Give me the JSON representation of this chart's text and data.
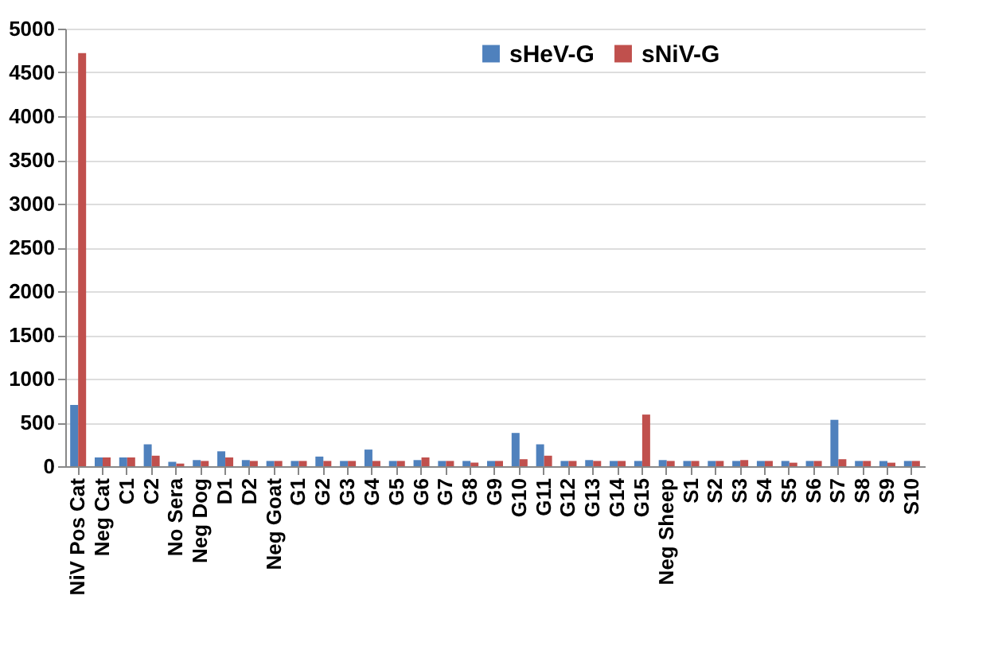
{
  "chart_data": {
    "type": "bar",
    "categories": [
      "NiV Pos Cat",
      "Neg Cat",
      "C1",
      "C2",
      "No Sera",
      "Neg Dog",
      "D1",
      "D2",
      "Neg Goat",
      "G1",
      "G2",
      "G3",
      "G4",
      "G5",
      "G6",
      "G7",
      "G8",
      "G9",
      "G10",
      "G11",
      "G12",
      "G13",
      "G14",
      "G15",
      "Neg Sheep",
      "S1",
      "S2",
      "S3",
      "S4",
      "S5",
      "S6",
      "S7",
      "S8",
      "S9",
      "S10"
    ],
    "series": [
      {
        "name": "sHeV-G",
        "color": "#4f81bd",
        "values": [
          700,
          100,
          100,
          250,
          50,
          70,
          170,
          70,
          60,
          60,
          110,
          60,
          190,
          60,
          70,
          60,
          60,
          60,
          380,
          250,
          60,
          70,
          60,
          60,
          70,
          60,
          60,
          60,
          60,
          60,
          60,
          530,
          60,
          60,
          60
        ]
      },
      {
        "name": "sNiV-G",
        "color": "#c0504d",
        "values": [
          4720,
          100,
          100,
          120,
          30,
          60,
          100,
          60,
          60,
          60,
          60,
          60,
          60,
          60,
          100,
          60,
          40,
          60,
          80,
          120,
          60,
          60,
          60,
          590,
          60,
          60,
          60,
          70,
          60,
          40,
          60,
          80,
          60,
          40,
          60
        ]
      }
    ],
    "ylim": [
      0,
      5000
    ],
    "yticks": [
      0,
      500,
      1000,
      1500,
      2000,
      2500,
      3000,
      3500,
      4000,
      4500,
      5000
    ],
    "grid": "y",
    "legend": "top right"
  }
}
